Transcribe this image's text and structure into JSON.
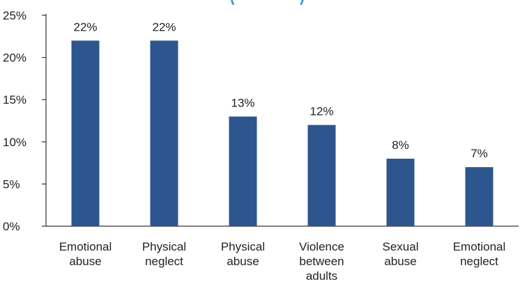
{
  "chart_data": {
    "type": "bar",
    "title_fragment": "(",
    "title_fragment_right": ")",
    "categories": [
      [
        "Emotional",
        "abuse"
      ],
      [
        "Physical",
        "neglect"
      ],
      [
        "Physical",
        "abuse"
      ],
      [
        "Violence",
        "between",
        "adults"
      ],
      [
        "Sexual",
        "abuse"
      ],
      [
        "Emotional",
        "neglect"
      ]
    ],
    "values": [
      22,
      22,
      13,
      12,
      8,
      7
    ],
    "data_labels": [
      "22%",
      "22%",
      "13%",
      "12%",
      "8%",
      "7%"
    ],
    "y_ticks": [
      "0%",
      "5%",
      "10%",
      "15%",
      "20%",
      "25%"
    ],
    "ylim": [
      0,
      25
    ],
    "grid": false,
    "colors": {
      "bar": "#2d568f",
      "axis": "#333333",
      "title": "#2f8fd6"
    }
  }
}
